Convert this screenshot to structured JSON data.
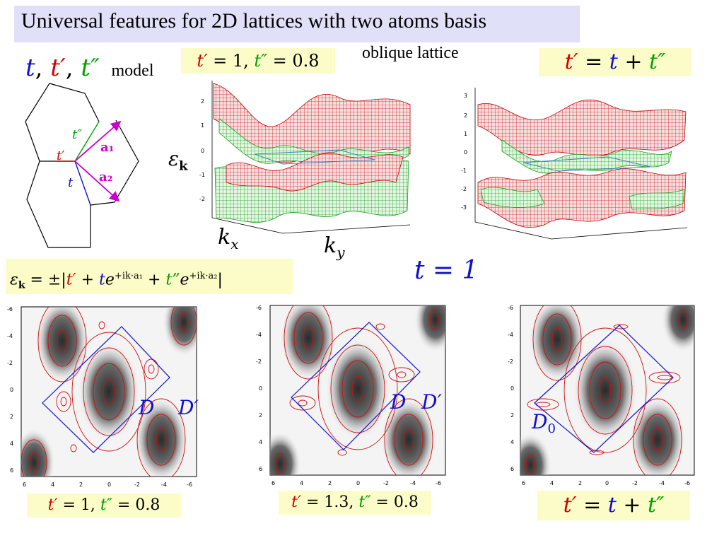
{
  "title": "Universal features for 2D lattices with two atoms basis",
  "model": {
    "t": "t",
    "comma1": ",",
    "tp": "t′",
    "comma2": ",",
    "tpp": "t″",
    "word": "model"
  },
  "param_top_left": {
    "tp": "t′",
    "eq1": " = 1, ",
    "tpp": "t″",
    "eq2": " = 0.8"
  },
  "oblique_label": "oblique lattice",
  "param_top_right": {
    "tp": "t′",
    "eq": " = ",
    "t": "t",
    "plus": " + ",
    "tpp": "t″"
  },
  "lattice_labels": {
    "tpp": "t″",
    "a1": "a₁",
    "tp": "t′",
    "a2": "a₂",
    "t": "t"
  },
  "energy_label": "ε",
  "energy_sub": "k",
  "kx_label": "k",
  "kx_sub": "x",
  "ky_label": "k",
  "ky_sub": "y",
  "formula": {
    "lhs": "ε",
    "lhs_sub": "k",
    "eq": " = ±|",
    "tp": "t′",
    "plus1": " + ",
    "t": "t",
    "e1": "e",
    "exp1": "+ik·a₁",
    "plus2": " + ",
    "tpp": "t”",
    "e2": "e",
    "exp2": "+ik·a₂",
    "end": "|"
  },
  "t_equals": "t = 1",
  "surface_ticks_left": [
    "2",
    "1",
    "0",
    "-1",
    "-2"
  ],
  "surface_ticks_right": [
    "3",
    "2",
    "1",
    "0",
    "-1",
    "-2",
    "-3"
  ],
  "contour_ticks_y": [
    "-6",
    "-4",
    "-2",
    "0",
    "2",
    "4",
    "6"
  ],
  "contour_ticks_x": [
    "6",
    "4",
    "2",
    "0",
    "-2",
    "-4",
    "-6"
  ],
  "contour_labels": {
    "left_D": "D",
    "left_Dp": "D′",
    "mid_D": "D",
    "mid_Dp": "D′",
    "right_D0": "D",
    "right_D0_sub": "0"
  },
  "caption_left": {
    "tp": "t′",
    "eq1": " = 1, ",
    "tpp": "t″",
    "eq2": " = 0.8"
  },
  "caption_mid": {
    "tp": "t′",
    "eq1": " = 1.3, ",
    "tpp": "t″",
    "eq2": " = 0.8"
  },
  "caption_right": {
    "tp": "t′",
    "eq": " = ",
    "t": "t",
    "plus": " + ",
    "tpp": "t″"
  },
  "colors": {
    "red": "#cc0000",
    "green": "#00a000",
    "blue": "#1010cc",
    "magenta": "#cc00cc",
    "title_bg": "#e0e0f8",
    "highlight": "#fcfcc8"
  }
}
